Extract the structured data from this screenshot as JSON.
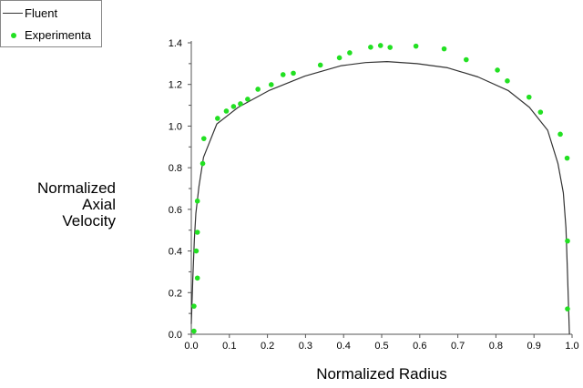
{
  "chart_data": {
    "type": "line",
    "xlabel": "Normalized Radius",
    "ylabel": "Normalized Axial Velocity",
    "ylabel_lines": [
      "Normalized",
      "Axial",
      "Velocity"
    ],
    "xlim": [
      0,
      1
    ],
    "ylim": [
      0,
      1.4
    ],
    "xticks": [
      "0.0",
      "0.1",
      "0.2",
      "0.3",
      "0.4",
      "0.5",
      "0.6",
      "0.7",
      "0.8",
      "0.9",
      "1.0"
    ],
    "yticks": [
      "0.0",
      "0.2",
      "0.4",
      "0.6",
      "0.8",
      "1.0",
      "1.2",
      "1.4"
    ],
    "grid": false,
    "legend": "top-left",
    "series": [
      {
        "name": "Fluent",
        "kind": "line",
        "color": "#333333",
        "x": [
          0.0,
          0.004,
          0.008,
          0.012,
          0.02,
          0.032,
          0.067,
          0.123,
          0.203,
          0.298,
          0.394,
          0.458,
          0.514,
          0.593,
          0.673,
          0.753,
          0.833,
          0.888,
          0.936,
          0.963,
          0.977,
          0.984,
          0.988,
          0.993
        ],
        "y": [
          0.05,
          0.27,
          0.45,
          0.58,
          0.71,
          0.85,
          1.01,
          1.09,
          1.17,
          1.24,
          1.29,
          1.305,
          1.31,
          1.3,
          1.28,
          1.236,
          1.17,
          1.09,
          0.98,
          0.82,
          0.68,
          0.51,
          0.29,
          0.0
        ]
      },
      {
        "name": "Experimental",
        "legend_text": "Experimenta",
        "kind": "scatter",
        "color": "#22e022",
        "x": [
          0.007,
          0.007,
          0.016,
          0.013,
          0.016,
          0.016,
          0.03,
          0.033,
          0.069,
          0.092,
          0.111,
          0.129,
          0.148,
          0.175,
          0.21,
          0.241,
          0.268,
          0.339,
          0.389,
          0.416,
          0.471,
          0.497,
          0.522,
          0.59,
          0.664,
          0.722,
          0.804,
          0.83,
          0.887,
          0.917,
          0.969,
          0.987,
          0.988,
          0.988
        ],
        "y": [
          0.015,
          0.135,
          0.27,
          0.4,
          0.49,
          0.64,
          0.82,
          0.94,
          1.037,
          1.072,
          1.094,
          1.107,
          1.129,
          1.177,
          1.199,
          1.247,
          1.254,
          1.293,
          1.328,
          1.352,
          1.379,
          1.387,
          1.378,
          1.384,
          1.371,
          1.319,
          1.269,
          1.217,
          1.139,
          1.067,
          0.961,
          0.846,
          0.448,
          0.122
        ]
      }
    ]
  }
}
